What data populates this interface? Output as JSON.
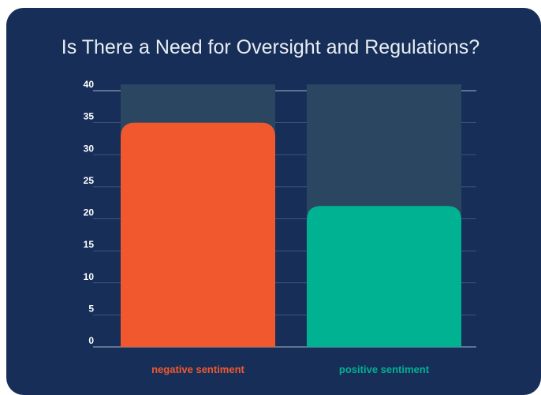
{
  "colors": {
    "background": "#172f58",
    "grid": "#4a6285",
    "baseline": "#8a9bb3",
    "track": "#2a4661",
    "tick_text": "#ffffff",
    "title_text": "#e9edf3"
  },
  "chart_data": {
    "type": "bar",
    "title": "Is There a Need for Oversight and Regulations?",
    "categories": [
      "negative sentiment",
      "positive sentiment"
    ],
    "values": [
      35,
      22
    ],
    "bar_colors": [
      "#f2582e",
      "#00b192"
    ],
    "ylim": [
      0,
      40
    ],
    "yticks": [
      0,
      5,
      10,
      15,
      20,
      25,
      30,
      35,
      40
    ],
    "grid": true,
    "legend": "none"
  }
}
